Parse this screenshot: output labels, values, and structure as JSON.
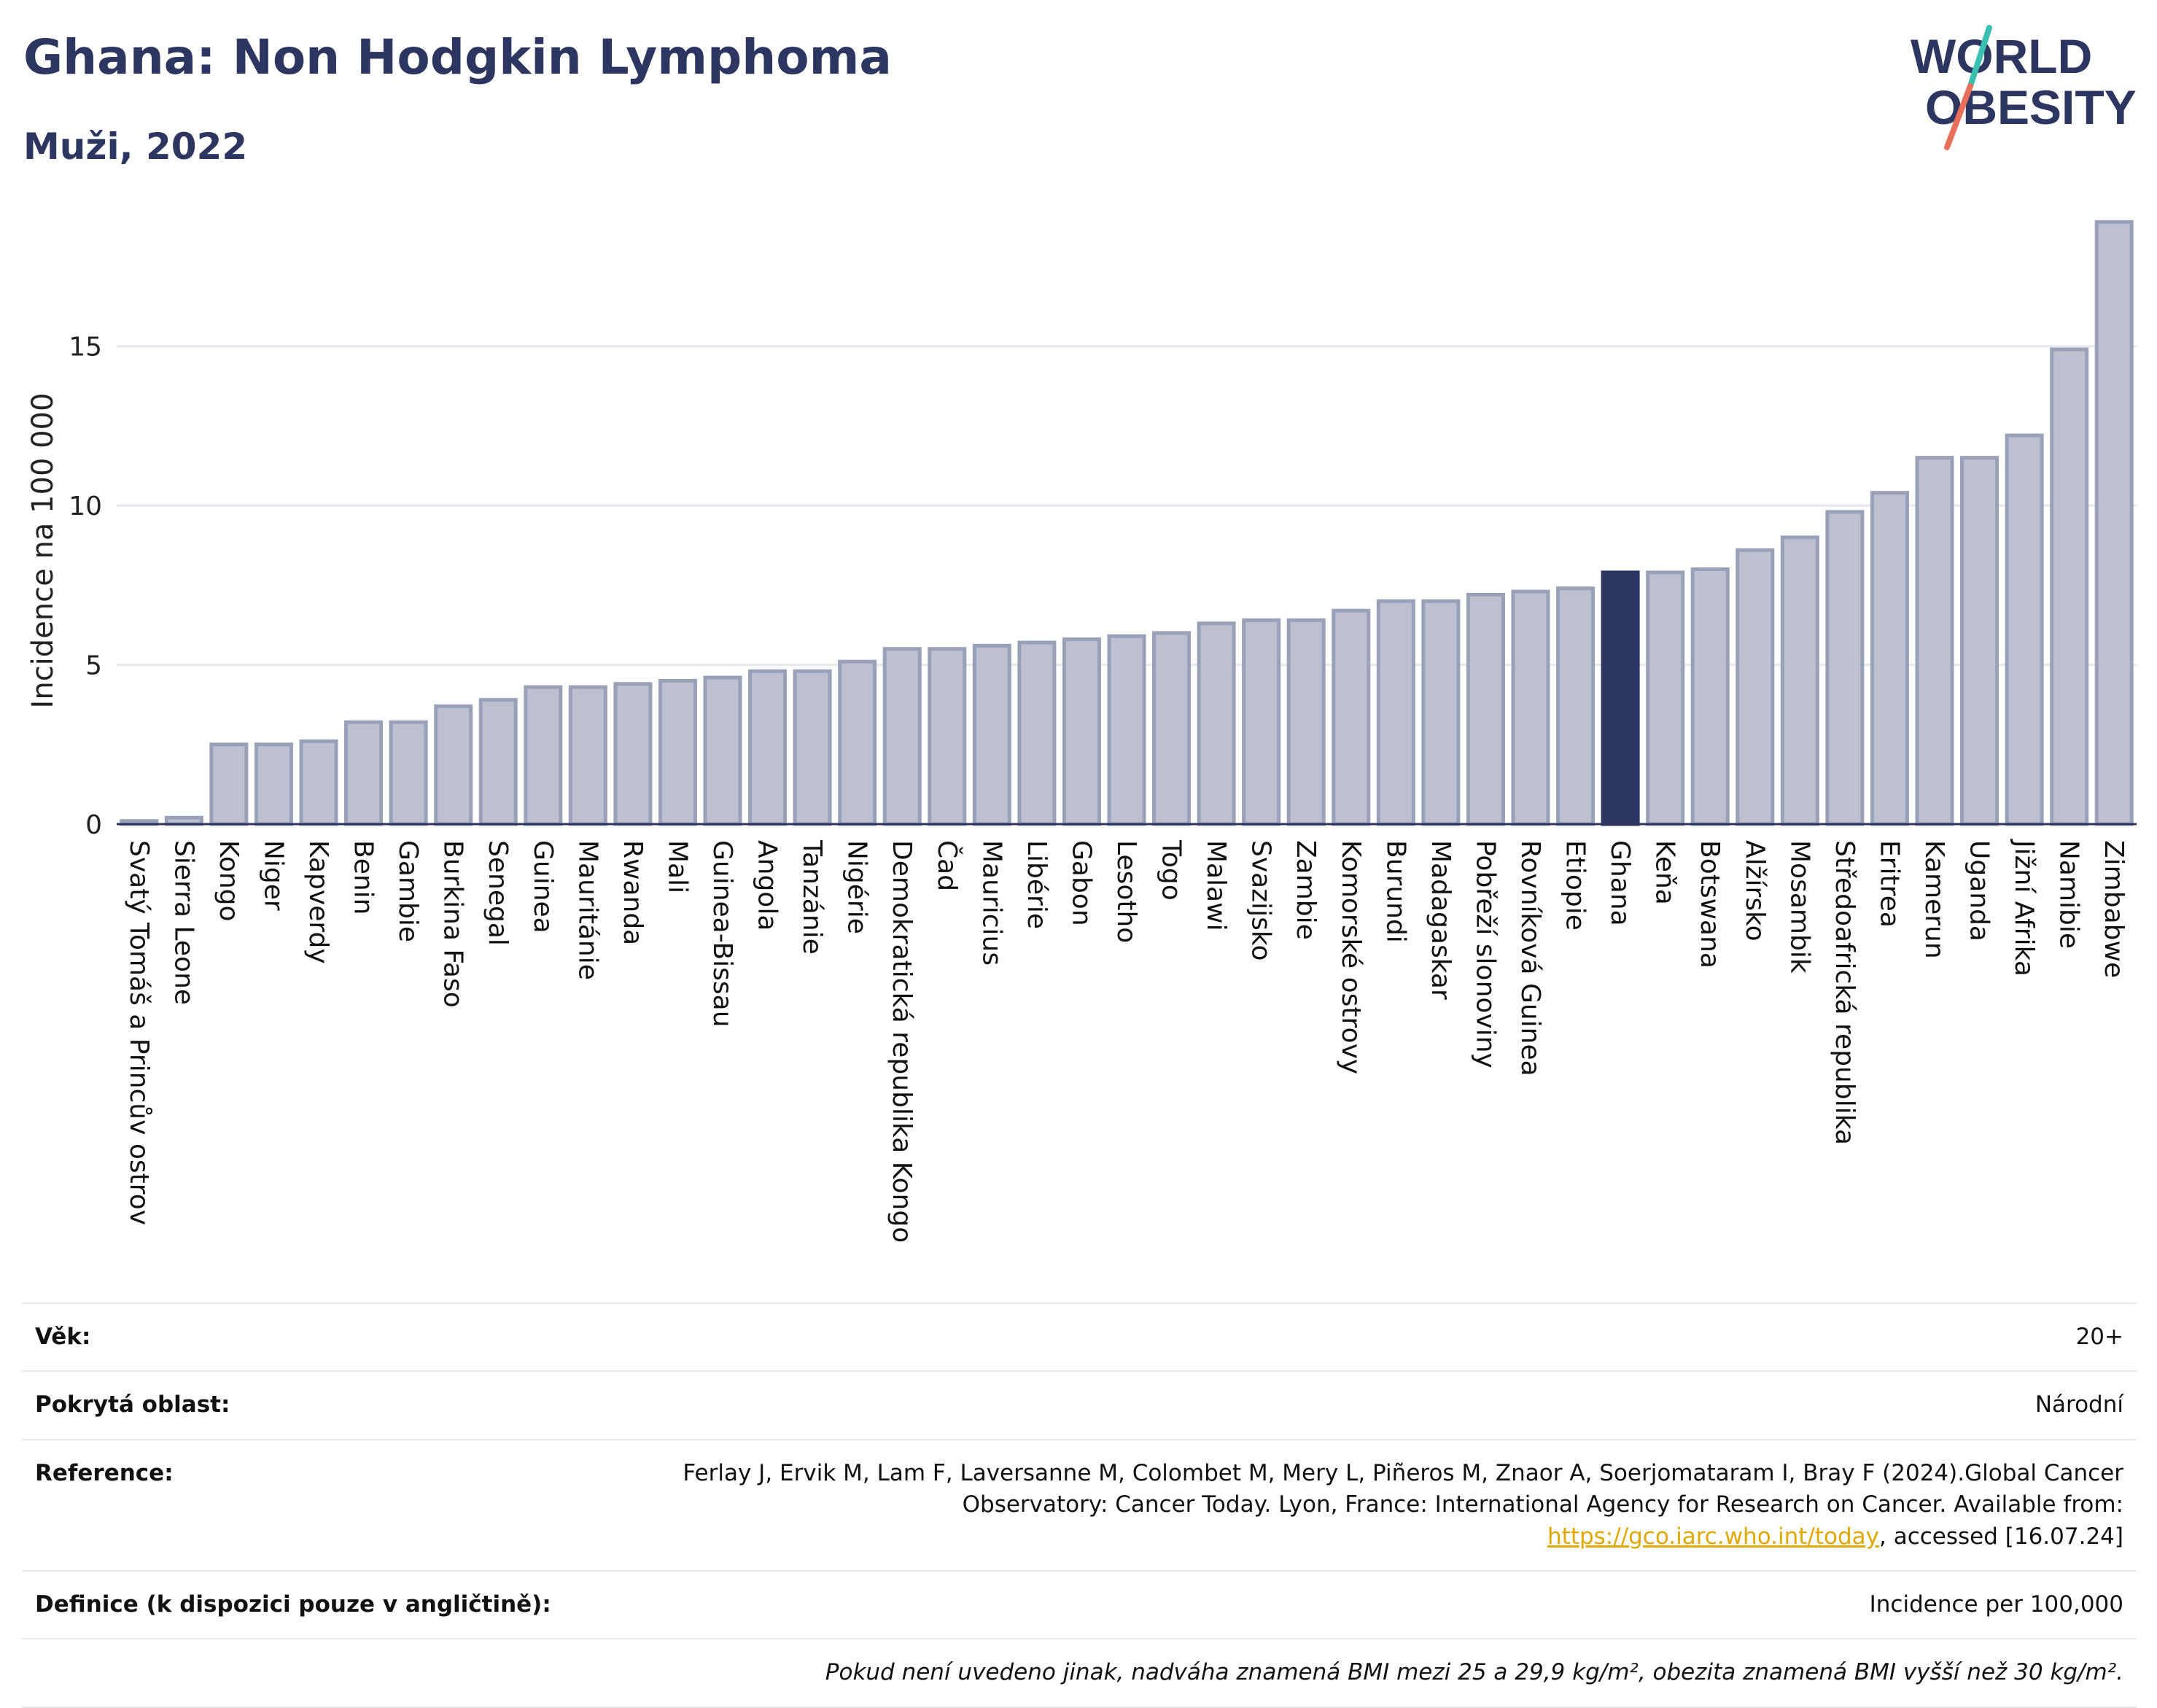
{
  "header": {
    "title": "Ghana: Non Hodgkin Lymphoma",
    "subtitle": "Muži, 2022"
  },
  "logo": {
    "line1": "WORLD",
    "line2": "OBESITY"
  },
  "colors": {
    "bar": "#bcc0cf",
    "bar_stroke": "#9aa0b8",
    "highlight": "#2d3561",
    "grid": "#e5e8ef",
    "text": "#2d3561",
    "logo_teal": "#3bbfb0",
    "logo_coral": "#e8705a"
  },
  "chart_data": {
    "type": "bar",
    "title": "Ghana: Non Hodgkin Lymphoma",
    "subtitle": "Muži, 2022",
    "xlabel": "",
    "ylabel": "Incidence na 100 000",
    "ylim": [
      0,
      19
    ],
    "yticks": [
      0,
      5,
      10,
      15
    ],
    "grid": true,
    "highlight": "Ghana",
    "categories": [
      "Svatý Tomáš a Princův ostrov",
      "Sierra Leone",
      "Kongo",
      "Niger",
      "Kapverdy",
      "Benin",
      "Gambie",
      "Burkina Faso",
      "Senegal",
      "Guinea",
      "Mauritánie",
      "Rwanda",
      "Mali",
      "Guinea-Bissau",
      "Angola",
      "Tanzánie",
      "Nigérie",
      "Demokratická republika Kongo",
      "Čad",
      "Mauricius",
      "Libérie",
      "Gabon",
      "Lesotho",
      "Togo",
      "Malawi",
      "Svazijsko",
      "Zambie",
      "Komorské ostrovy",
      "Burundi",
      "Madagaskar",
      "Pobřeží slonoviny",
      "Rovníková Guinea",
      "Etiopie",
      "Ghana",
      "Keňa",
      "Botswana",
      "Alžírsko",
      "Mosambik",
      "Středoafrická republika",
      "Eritrea",
      "Kamerun",
      "Uganda",
      "Jižní Afrika",
      "Namibie",
      "Zimbabwe"
    ],
    "values": [
      0.1,
      0.2,
      2.5,
      2.5,
      2.6,
      3.2,
      3.2,
      3.7,
      3.9,
      4.3,
      4.3,
      4.4,
      4.5,
      4.6,
      4.8,
      4.8,
      5.1,
      5.5,
      5.5,
      5.6,
      5.7,
      5.8,
      5.9,
      6.0,
      6.3,
      6.4,
      6.4,
      6.7,
      7.0,
      7.0,
      7.2,
      7.3,
      7.4,
      7.9,
      7.9,
      8.0,
      8.6,
      9.0,
      9.8,
      10.4,
      11.5,
      11.5,
      12.2,
      14.9,
      18.9
    ]
  },
  "info": {
    "age_label": "Věk:",
    "age_value": "20+",
    "coverage_label": "Pokrytá oblast:",
    "coverage_value": "Národní",
    "reference_label": "Reference:",
    "reference_text": "Ferlay J, Ervik M, Lam F, Laversanne M, Colombet M, Mery L, Piñeros M, Znaor A, Soerjomataram I, Bray F (2024).Global Cancer Observatory: Cancer Today. Lyon, France: International Agency for Research on Cancer. Available from:",
    "reference_link": "https://gco.iarc.who.int/today",
    "reference_suffix": ", accessed [16.07.24]",
    "definition_label": "Definice (k dispozici pouze v angličtině):",
    "definition_value": "Incidence per 100,000",
    "note": "Pokud není uvedeno jinak, nadváha znamená BMI mezi 25 a 29,9 kg/m², obezita znamená BMI vyšší než 30 kg/m²."
  }
}
